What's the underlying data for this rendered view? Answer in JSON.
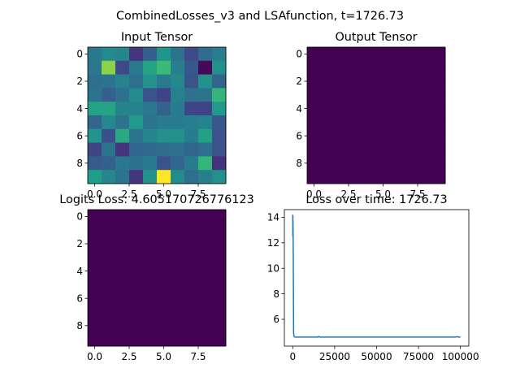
{
  "suptitle": "CombinedLosses_v3 and LSAfunction, t=1726.73",
  "chart_data": [
    {
      "type": "heatmap",
      "title": "Input Tensor",
      "colormap": "viridis",
      "value_range": [
        0,
        1
      ],
      "xlim": [
        -0.5,
        9.5
      ],
      "ylim": [
        9.5,
        -0.5
      ],
      "xticks": [
        0.0,
        2.5,
        5.0,
        7.5
      ],
      "xtick_labels": [
        "0.0",
        "2.5",
        "5.0",
        "7.5"
      ],
      "yticks": [
        0,
        2,
        4,
        6,
        8
      ],
      "ytick_labels": [
        "0",
        "2",
        "4",
        "6",
        "8"
      ],
      "z": [
        [
          0.4,
          0.48,
          0.46,
          0.15,
          0.3,
          0.52,
          0.38,
          0.22,
          0.35,
          0.43
        ],
        [
          0.4,
          0.82,
          0.22,
          0.41,
          0.58,
          0.68,
          0.43,
          0.27,
          0.02,
          0.5
        ],
        [
          0.36,
          0.38,
          0.45,
          0.36,
          0.52,
          0.41,
          0.47,
          0.26,
          0.5,
          0.32
        ],
        [
          0.38,
          0.3,
          0.37,
          0.48,
          0.26,
          0.2,
          0.44,
          0.37,
          0.38,
          0.66
        ],
        [
          0.58,
          0.58,
          0.45,
          0.45,
          0.4,
          0.31,
          0.42,
          0.21,
          0.2,
          0.54
        ],
        [
          0.32,
          0.47,
          0.38,
          0.54,
          0.38,
          0.42,
          0.42,
          0.43,
          0.45,
          0.27
        ],
        [
          0.52,
          0.24,
          0.61,
          0.38,
          0.46,
          0.5,
          0.5,
          0.42,
          0.57,
          0.26
        ],
        [
          0.21,
          0.38,
          0.15,
          0.33,
          0.34,
          0.35,
          0.36,
          0.33,
          0.36,
          0.25
        ],
        [
          0.29,
          0.3,
          0.4,
          0.37,
          0.41,
          0.26,
          0.33,
          0.42,
          0.66,
          0.14
        ],
        [
          0.56,
          0.46,
          0.38,
          0.16,
          0.51,
          1.0,
          0.48,
          0.36,
          0.43,
          0.5
        ]
      ]
    },
    {
      "type": "heatmap",
      "title": "Output Tensor",
      "colormap": "viridis",
      "uniform_value": 0,
      "xlim": [
        -0.5,
        9.5
      ],
      "ylim": [
        9.5,
        -0.5
      ],
      "xticks": [
        0.0,
        2.5,
        5.0,
        7.5
      ],
      "xtick_labels": [
        "0.0",
        "2.5",
        "5.0",
        "7.5"
      ],
      "yticks": [
        0,
        2,
        4,
        6,
        8
      ],
      "ytick_labels": [
        "0",
        "2",
        "4",
        "6",
        "8"
      ]
    },
    {
      "type": "heatmap",
      "title": "Logits Loss: 4.605170726776123",
      "colormap": "viridis",
      "uniform_value": 0,
      "xlim": [
        -0.5,
        9.5
      ],
      "ylim": [
        9.5,
        -0.5
      ],
      "xticks": [
        0.0,
        2.5,
        5.0,
        7.5
      ],
      "xtick_labels": [
        "0.0",
        "2.5",
        "5.0",
        "7.5"
      ],
      "yticks": [
        0,
        2,
        4,
        6,
        8
      ],
      "ytick_labels": [
        "0",
        "2",
        "4",
        "6",
        "8"
      ]
    },
    {
      "type": "line",
      "title": "Loss over time: 1726.73",
      "xlim": [
        -5000,
        105000
      ],
      "ylim": [
        3.9,
        14.6
      ],
      "xticks": [
        0,
        25000,
        50000,
        75000,
        100000
      ],
      "xtick_labels": [
        "0",
        "25000",
        "50000",
        "75000",
        "100000"
      ],
      "yticks": [
        6,
        8,
        10,
        12,
        14
      ],
      "ytick_labels": [
        "6",
        "8",
        "10",
        "12",
        "14"
      ],
      "series": [
        {
          "color": "#1f77b4",
          "x": [
            0,
            50,
            100,
            200,
            300,
            400,
            500,
            700,
            1000,
            2000,
            5000,
            10000,
            15000,
            15500,
            16000,
            20000,
            30000,
            40000,
            50000,
            60000,
            70000,
            80000,
            90000,
            97000,
            98000,
            99000,
            100000
          ],
          "y": [
            14.2,
            12.5,
            14.1,
            13.0,
            11.0,
            8.0,
            5.0,
            4.68,
            4.62,
            4.61,
            4.61,
            4.61,
            4.61,
            4.66,
            4.61,
            4.61,
            4.61,
            4.61,
            4.61,
            4.61,
            4.61,
            4.61,
            4.61,
            4.61,
            4.64,
            4.61,
            4.61
          ]
        }
      ]
    }
  ]
}
